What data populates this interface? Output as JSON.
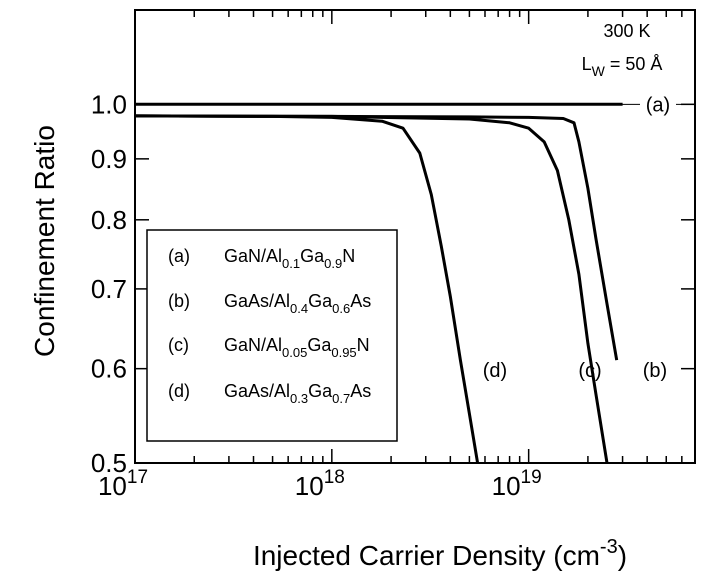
{
  "chart_data": {
    "type": "line",
    "xscale": "log",
    "yscale": "log",
    "xlim": [
      1e+17,
      7e+19
    ],
    "ylim": [
      0.5,
      1.2
    ],
    "xlabel": "Injected Carrier Density (cm",
    "xlabel_sup": "-3",
    "xlabel_close": ")",
    "ylabel": "Confinement Ratio",
    "x_ticks": [
      {
        "value": 1e+17,
        "base": "10",
        "exp": "17"
      },
      {
        "value": 1e+18,
        "base": "10",
        "exp": "18"
      },
      {
        "value": 1e+19,
        "base": "10",
        "exp": "19"
      }
    ],
    "y_ticks": [
      {
        "value": 0.5,
        "label": "0.5"
      },
      {
        "value": 0.6,
        "label": "0.6"
      },
      {
        "value": 0.7,
        "label": "0.7"
      },
      {
        "value": 0.8,
        "label": "0.8"
      },
      {
        "value": 0.9,
        "label": "0.9"
      },
      {
        "value": 1.0,
        "label": "1.0"
      }
    ],
    "annotation": {
      "line1": "300 K",
      "line2_main": "L",
      "line2_sub": "W",
      "line2_rest": " = 50 Å"
    },
    "series": [
      {
        "key": "a",
        "label": "(a)",
        "x": [
          1e+17,
          1e+18,
          1e+19,
          3e+19
        ],
        "y": [
          1.0,
          1.0,
          1.0,
          1.0
        ]
      },
      {
        "key": "b",
        "label": "(b)",
        "x": [
          1e+17,
          1e+18,
          5e+18,
          1e+19,
          1.5e+19,
          1.7e+19,
          1.8e+19,
          2e+19,
          2.2e+19,
          2.5e+19,
          2.8e+19
        ],
        "y": [
          0.978,
          0.977,
          0.976,
          0.975,
          0.973,
          0.965,
          0.93,
          0.85,
          0.77,
          0.68,
          0.61
        ]
      },
      {
        "key": "c",
        "label": "(c)",
        "x": [
          1e+17,
          1e+18,
          5e+18,
          8e+18,
          1e+19,
          1.2e+19,
          1.4e+19,
          1.6e+19,
          1.8e+19,
          2e+19,
          2.2e+19,
          2.5e+19
        ],
        "y": [
          0.978,
          0.977,
          0.972,
          0.965,
          0.955,
          0.93,
          0.88,
          0.8,
          0.72,
          0.63,
          0.57,
          0.5
        ]
      },
      {
        "key": "d",
        "label": "(d)",
        "x": [
          1e+17,
          5e+17,
          1e+18,
          1.8e+18,
          2.3e+18,
          2.8e+18,
          3.2e+18,
          3.6e+18,
          4e+18,
          4.5e+18,
          5e+18,
          5.5e+18
        ],
        "y": [
          0.978,
          0.977,
          0.975,
          0.968,
          0.955,
          0.91,
          0.84,
          0.76,
          0.69,
          0.61,
          0.55,
          0.5
        ]
      }
    ],
    "legend": {
      "entries": [
        {
          "key": "(a)",
          "parts": [
            [
              "GaN/Al",
              "n"
            ],
            [
              "0.1",
              "sub"
            ],
            [
              "Ga",
              "n"
            ],
            [
              "0.9",
              "sub"
            ],
            [
              "N",
              "n"
            ]
          ]
        },
        {
          "key": "(b)",
          "parts": [
            [
              "GaAs/Al",
              "n"
            ],
            [
              "0.4",
              "sub"
            ],
            [
              "Ga",
              "n"
            ],
            [
              "0.6",
              "sub"
            ],
            [
              "As",
              "n"
            ]
          ]
        },
        {
          "key": "(c)",
          "parts": [
            [
              "GaN/Al",
              "n"
            ],
            [
              "0.05",
              "sub"
            ],
            [
              "Ga",
              "n"
            ],
            [
              "0.95",
              "sub"
            ],
            [
              "N",
              "n"
            ]
          ]
        },
        {
          "key": "(d)",
          "parts": [
            [
              "GaAs/Al",
              "n"
            ],
            [
              "0.3",
              "sub"
            ],
            [
              "Ga",
              "n"
            ],
            [
              "0.7",
              "sub"
            ],
            [
              "As",
              "n"
            ]
          ]
        }
      ]
    }
  }
}
